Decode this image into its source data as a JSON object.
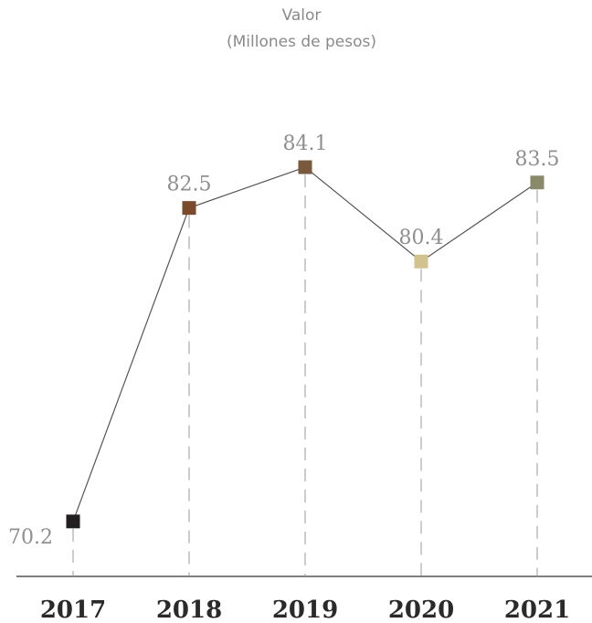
{
  "chart_data": {
    "type": "line",
    "title": "Valor",
    "subtitle": "(Millones de pesos)",
    "xlabel": "",
    "ylabel": "",
    "categories": [
      "2017",
      "2018",
      "2019",
      "2020",
      "2021"
    ],
    "values": [
      70.2,
      82.5,
      84.1,
      80.4,
      83.5
    ],
    "value_labels": [
      "70.2",
      "82.5",
      "84.1",
      "80.4",
      "83.5"
    ],
    "ylim": [
      66,
      86
    ],
    "grid": false,
    "legend": "none",
    "colors": {
      "markers": [
        "#231f20",
        "#7a4a2a",
        "#7a5a3e",
        "#d2c38e",
        "#8a8a6a"
      ],
      "line": "#555555",
      "guide": "#9a9a9a",
      "axis": "#555555"
    }
  }
}
